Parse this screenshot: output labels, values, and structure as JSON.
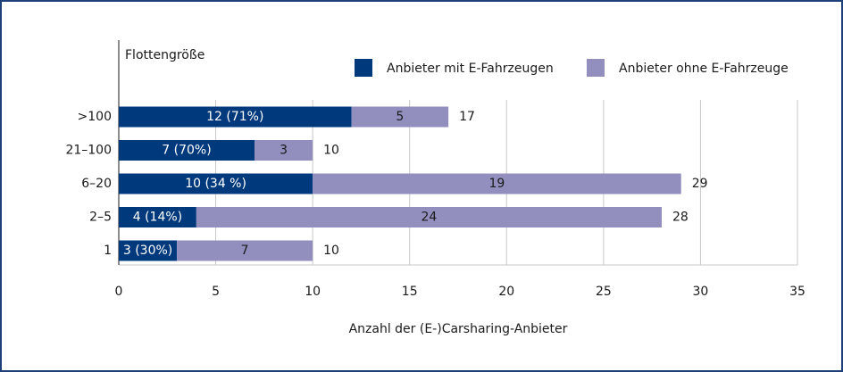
{
  "chart_data": {
    "type": "stacked-bar-horizontal",
    "ylabel": "Flottengröße",
    "xlabel": "Anzahl der (E-)Carsharing-Anbieter",
    "categories": [
      ">100",
      "21–100",
      "6–20",
      "2–5",
      "1"
    ],
    "series": [
      {
        "name": "Anbieter mit E-Fahrzeugen",
        "color": "#003a7d",
        "values": [
          12,
          7,
          10,
          4,
          3
        ],
        "value_labels": [
          "12 (71%)",
          "7 (70%)",
          "10 (34 %)",
          "4 (14%)",
          "3 (30%)"
        ]
      },
      {
        "name": "Anbieter ohne E-Fahrzeuge",
        "color": "#928fbf",
        "values": [
          5,
          3,
          19,
          24,
          7
        ]
      }
    ],
    "totals": [
      17,
      10,
      29,
      28,
      10
    ],
    "xlim": [
      0,
      35
    ],
    "xticks": [
      0,
      5,
      10,
      15,
      20,
      25,
      30,
      35
    ],
    "grid": true
  }
}
